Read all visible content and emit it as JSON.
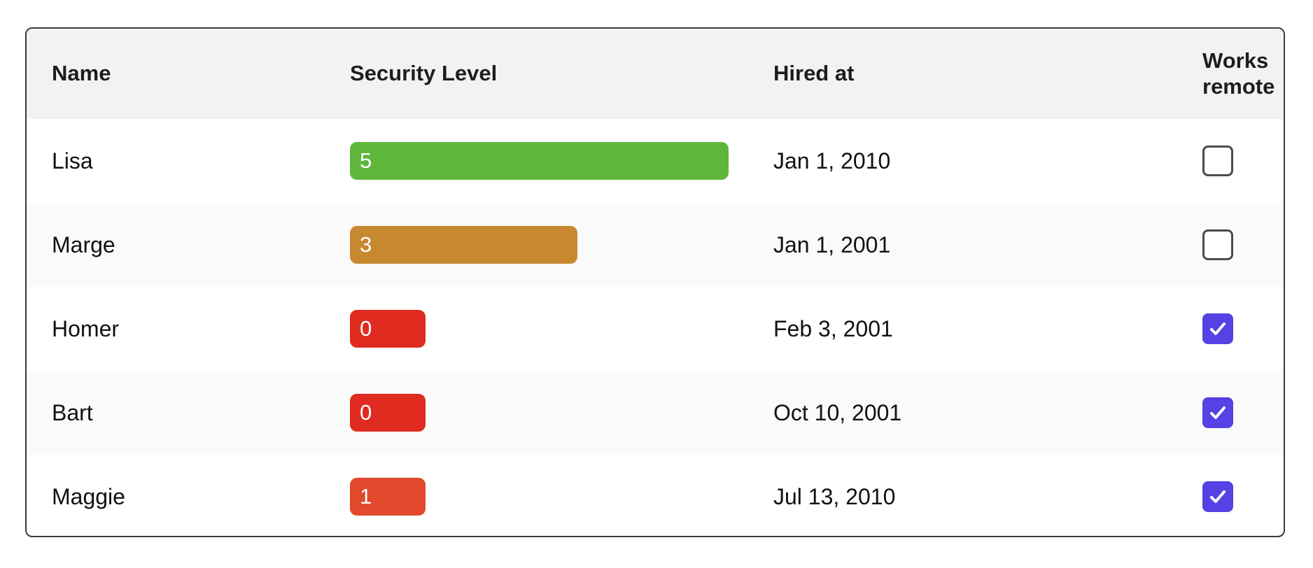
{
  "table": {
    "columns": [
      {
        "label": "Name"
      },
      {
        "label": "Security Level"
      },
      {
        "label": "Hired at"
      },
      {
        "label": "Works remote"
      }
    ],
    "rows": [
      {
        "name": "Lisa",
        "security_level": 5,
        "security_level_max": 5,
        "bar_color": "#5eb73b",
        "hired_at": "Jan 1, 2010",
        "works_remote": false
      },
      {
        "name": "Marge",
        "security_level": 3,
        "security_level_max": 5,
        "bar_color": "#c7882f",
        "hired_at": "Jan 1, 2001",
        "works_remote": false
      },
      {
        "name": "Homer",
        "security_level": 0,
        "security_level_max": 5,
        "bar_color": "#e02b20",
        "hired_at": "Feb 3, 2001",
        "works_remote": true
      },
      {
        "name": "Bart",
        "security_level": 0,
        "security_level_max": 5,
        "bar_color": "#e02b20",
        "hired_at": "Oct 10, 2001",
        "works_remote": true
      },
      {
        "name": "Maggie",
        "security_level": 1,
        "security_level_max": 5,
        "bar_color": "#e0492b",
        "hired_at": "Jul 13, 2010",
        "works_remote": true
      }
    ],
    "colors": {
      "header_bg": "#f2f2f2",
      "row_stripe_bg": "#fafafa",
      "card_border": "#3b3b3b",
      "checkbox_checked_bg": "#5641e5",
      "checkbox_border": "#4b4b4b",
      "bar_text": "#ffffff"
    }
  }
}
